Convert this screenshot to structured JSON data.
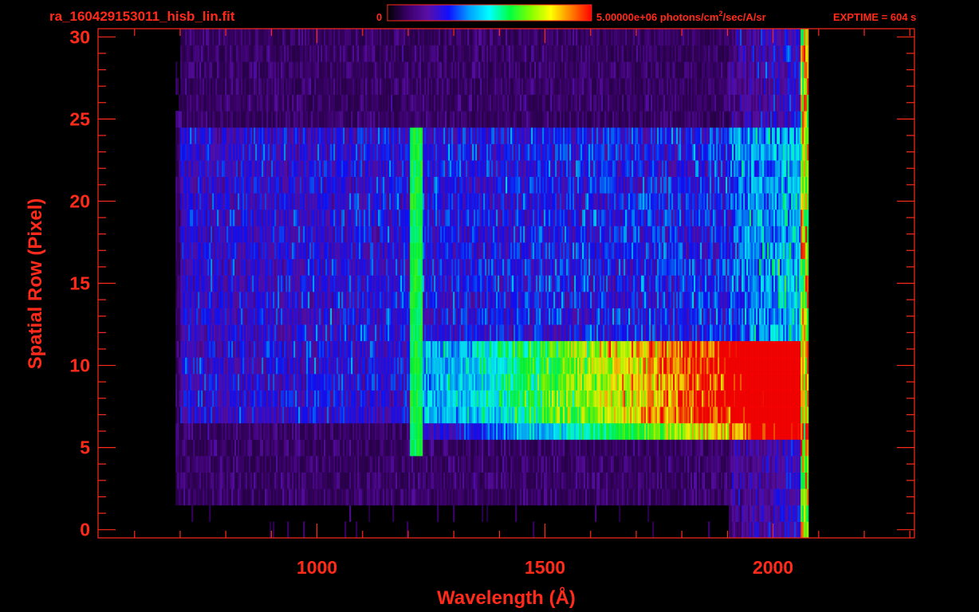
{
  "header": {
    "filename": "ra_160429153011_hisb_lin.fit",
    "colorbar_min": "0",
    "colorbar_max_prefix": "5.00000e+06 photons/cm",
    "colorbar_max_sup": "2",
    "colorbar_max_suffix": "/sec/A/sr",
    "exptime": "EXPTIME = 604 s"
  },
  "colors": {
    "axis": "#ff2a1a",
    "background": "#000000",
    "colormap": [
      "#000000",
      "#3b006b",
      "#5a0fa8",
      "#1010ff",
      "#00a0ff",
      "#00ffff",
      "#00ff40",
      "#80ff00",
      "#ffff00",
      "#ff8000",
      "#ff0000"
    ]
  },
  "chart_data": {
    "type": "heatmap",
    "title": "ra_160429153011_hisb_lin.fit",
    "xlabel": "Wavelength (Å)",
    "ylabel": "Spatial Row (Pixel)",
    "xlim": [
      520,
      2310
    ],
    "ylim": [
      -0.5,
      30.5
    ],
    "x_ticks": [
      1000,
      1500,
      2000
    ],
    "x_tick_labels": [
      "1000",
      "1500",
      "2000"
    ],
    "y_ticks": [
      0,
      5,
      10,
      15,
      20,
      25,
      30
    ],
    "y_tick_labels": [
      "0",
      "5",
      "10",
      "15",
      "20",
      "25",
      "30"
    ],
    "color_scale": {
      "min": 0,
      "max": 5000000,
      "unit": "photons/cm^2/sec/A/sr",
      "scale": "linear"
    },
    "data_extent_wavelength": [
      690,
      2075
    ],
    "features": [
      {
        "name": "Lyman-alpha emission line",
        "wavelength": 1216,
        "rows": [
          5,
          24
        ],
        "intensity_fraction": 0.55
      },
      {
        "name": "bright continuum band",
        "wavelength_range": [
          1500,
          2065
        ],
        "rows": [
          6,
          11
        ],
        "peak_intensity_fraction": 0.9
      },
      {
        "name": "faint diffuse emission",
        "wavelength_range": [
          700,
          2060
        ],
        "rows": [
          7,
          24
        ],
        "intensity_fraction": 0.25
      }
    ]
  }
}
